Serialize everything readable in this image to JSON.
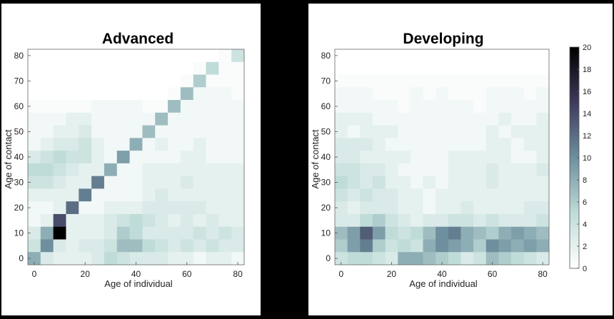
{
  "chart_data": [
    {
      "type": "heatmap",
      "title": "Advanced",
      "xlabel": "Age of individual",
      "ylabel": "Age of contact",
      "xlim": [
        -2.5,
        82.5
      ],
      "ylim": [
        -2.5,
        82.5
      ],
      "xticks": [
        0,
        20,
        40,
        60,
        80
      ],
      "yticks": [
        0,
        10,
        20,
        30,
        40,
        50,
        60,
        70,
        80
      ],
      "bin_starts": [
        0,
        5,
        10,
        15,
        20,
        25,
        30,
        35,
        40,
        45,
        50,
        55,
        60,
        65,
        70,
        75,
        80
      ],
      "row_order": "row 0 = contact age bin 80 (top) down to row 16 = contact age bin 0 (bottom)",
      "values": [
        [
          0,
          0,
          0,
          0,
          0,
          0,
          0,
          0,
          0,
          0,
          0,
          0,
          0,
          0,
          0,
          0.5,
          4
        ],
        [
          0,
          0,
          0,
          0,
          0,
          0,
          0,
          0,
          0,
          0,
          0,
          0,
          0,
          0.5,
          5,
          0.5,
          0.5
        ],
        [
          0,
          0,
          0,
          0,
          0,
          0,
          0,
          0,
          0,
          0,
          0,
          0,
          0.5,
          6,
          0.5,
          0.5,
          0.5
        ],
        [
          0,
          0,
          0,
          0,
          0,
          0,
          0,
          0,
          0,
          0,
          0,
          0.5,
          7,
          1,
          1,
          1,
          0.5
        ],
        [
          0.5,
          0.5,
          0.5,
          0.5,
          0.5,
          1,
          1,
          1,
          1,
          0.5,
          0.5,
          7,
          1,
          1,
          1,
          1,
          1
        ],
        [
          1,
          1,
          1,
          2,
          2,
          1,
          1,
          1,
          1,
          1,
          7,
          1,
          1,
          1,
          1,
          1,
          1
        ],
        [
          1,
          1,
          2,
          2,
          3,
          1,
          1,
          1,
          1,
          7,
          1,
          1,
          1,
          1,
          1,
          1,
          1
        ],
        [
          1,
          2,
          3,
          3,
          4,
          2,
          1,
          1,
          8,
          1,
          2,
          1,
          1,
          2,
          1,
          1,
          1
        ],
        [
          3,
          4,
          5,
          4,
          4,
          2,
          1,
          9,
          1,
          1,
          1,
          1,
          2,
          2,
          1,
          1,
          1
        ],
        [
          5,
          5,
          4,
          3,
          2,
          2,
          8,
          1,
          1,
          2,
          2,
          2,
          2,
          2,
          2,
          2,
          2
        ],
        [
          4,
          4,
          3,
          2,
          2,
          11,
          1,
          1,
          1,
          2,
          2,
          2,
          3,
          2,
          2,
          2,
          2
        ],
        [
          2,
          2,
          2,
          2,
          11,
          1,
          1,
          1,
          1,
          2,
          3,
          2,
          2,
          2,
          2,
          2,
          2
        ],
        [
          1,
          1,
          2,
          12,
          1,
          1,
          2,
          2,
          2,
          3,
          3,
          3,
          3,
          3,
          2,
          2,
          2
        ],
        [
          1,
          2,
          14,
          2,
          2,
          2,
          3,
          4,
          5,
          4,
          3,
          2,
          3,
          2,
          3,
          2,
          2
        ],
        [
          3,
          8,
          20,
          2,
          2,
          2,
          3,
          6,
          5,
          3,
          3,
          3,
          3,
          4,
          3,
          4,
          3
        ],
        [
          4,
          10,
          3,
          2,
          3,
          3,
          4,
          7,
          7,
          5,
          4,
          3,
          4,
          3,
          4,
          3,
          3
        ],
        [
          8,
          3,
          2,
          2,
          2,
          3,
          5,
          4,
          3,
          3,
          3,
          2,
          2,
          1,
          2,
          2,
          1
        ]
      ]
    },
    {
      "type": "heatmap",
      "title": "Developing",
      "xlabel": "Age of individual",
      "ylabel": "Age of contact",
      "xlim": [
        -2.5,
        82.5
      ],
      "ylim": [
        -2.5,
        82.5
      ],
      "xticks": [
        0,
        20,
        40,
        60,
        80
      ],
      "yticks": [
        0,
        10,
        20,
        30,
        40,
        50,
        60,
        70,
        80
      ],
      "bin_starts": [
        0,
        5,
        10,
        15,
        20,
        25,
        30,
        35,
        40,
        45,
        50,
        55,
        60,
        65,
        70,
        75,
        80
      ],
      "row_order": "row 0 = contact age bin 80 (top) down to row 16 = contact age bin 0 (bottom)",
      "values": [
        [
          0,
          0,
          0,
          0,
          0,
          0,
          0,
          0,
          0,
          0,
          0,
          0,
          0,
          0,
          0,
          0,
          0
        ],
        [
          0,
          0,
          0,
          0,
          0,
          0,
          0,
          0,
          0,
          0,
          0,
          0,
          0,
          0,
          0,
          0,
          0
        ],
        [
          0.5,
          0.5,
          0.5,
          0.5,
          0.5,
          0.5,
          0.5,
          0.5,
          0.5,
          0.5,
          0.5,
          0.5,
          0.5,
          0.5,
          0.5,
          0.5,
          0.5
        ],
        [
          1,
          1,
          1,
          0.5,
          0.5,
          0.5,
          1,
          0.5,
          1,
          0.5,
          0.5,
          0.5,
          1,
          1,
          1,
          0.5,
          1
        ],
        [
          1,
          1,
          1,
          1,
          1,
          0.5,
          1,
          1,
          1,
          1,
          1,
          0.5,
          1,
          1,
          1,
          1,
          1
        ],
        [
          2,
          2,
          2,
          1,
          1,
          1,
          1,
          1,
          1,
          1,
          1,
          1,
          1,
          2,
          1,
          1,
          2
        ],
        [
          2,
          1,
          2,
          2,
          2,
          1,
          1,
          1,
          1,
          1,
          1,
          1,
          2,
          1,
          2,
          2,
          2
        ],
        [
          3,
          3,
          3,
          2,
          1,
          1,
          1,
          1,
          1,
          1,
          1,
          1,
          2,
          2,
          1,
          2,
          2
        ],
        [
          3,
          3,
          2,
          2,
          2,
          2,
          1,
          1,
          1,
          2,
          2,
          2,
          2,
          2,
          1,
          1,
          2
        ],
        [
          4,
          4,
          3,
          3,
          2,
          1,
          1,
          1,
          1,
          2,
          2,
          2,
          3,
          2,
          2,
          2,
          3
        ],
        [
          5,
          4,
          3,
          4,
          2,
          2,
          1,
          2,
          1,
          2,
          2,
          2,
          3,
          2,
          2,
          2,
          2
        ],
        [
          4,
          3,
          4,
          3,
          3,
          2,
          2,
          1,
          2,
          2,
          2,
          2,
          2,
          2,
          2,
          2,
          2
        ],
        [
          3,
          2,
          3,
          3,
          3,
          2,
          2,
          1,
          2,
          2,
          3,
          2,
          2,
          2,
          2,
          3,
          3
        ],
        [
          3,
          3,
          5,
          6,
          4,
          3,
          2,
          3,
          3,
          4,
          4,
          3,
          4,
          3,
          3,
          3,
          4
        ],
        [
          7,
          9,
          13,
          9,
          5,
          4,
          5,
          7,
          10,
          11,
          8,
          7,
          6,
          8,
          9,
          8,
          7
        ],
        [
          6,
          9,
          11,
          6,
          4,
          5,
          4,
          8,
          10,
          9,
          8,
          6,
          10,
          9,
          8,
          9,
          8
        ],
        [
          4,
          5,
          5,
          4,
          3,
          8,
          8,
          7,
          6,
          5,
          3,
          4,
          7,
          6,
          5,
          4,
          3
        ]
      ]
    }
  ],
  "colorbar": {
    "ticks": [
      "0",
      "2",
      "4",
      "6",
      "8",
      "10",
      "12",
      "14",
      "16",
      "18",
      "20"
    ],
    "min": 0,
    "max": 20,
    "colormap": [
      "#ffffff",
      "#bfdcd8",
      "#6e8f9e",
      "#3e3a5c",
      "#000000"
    ]
  }
}
